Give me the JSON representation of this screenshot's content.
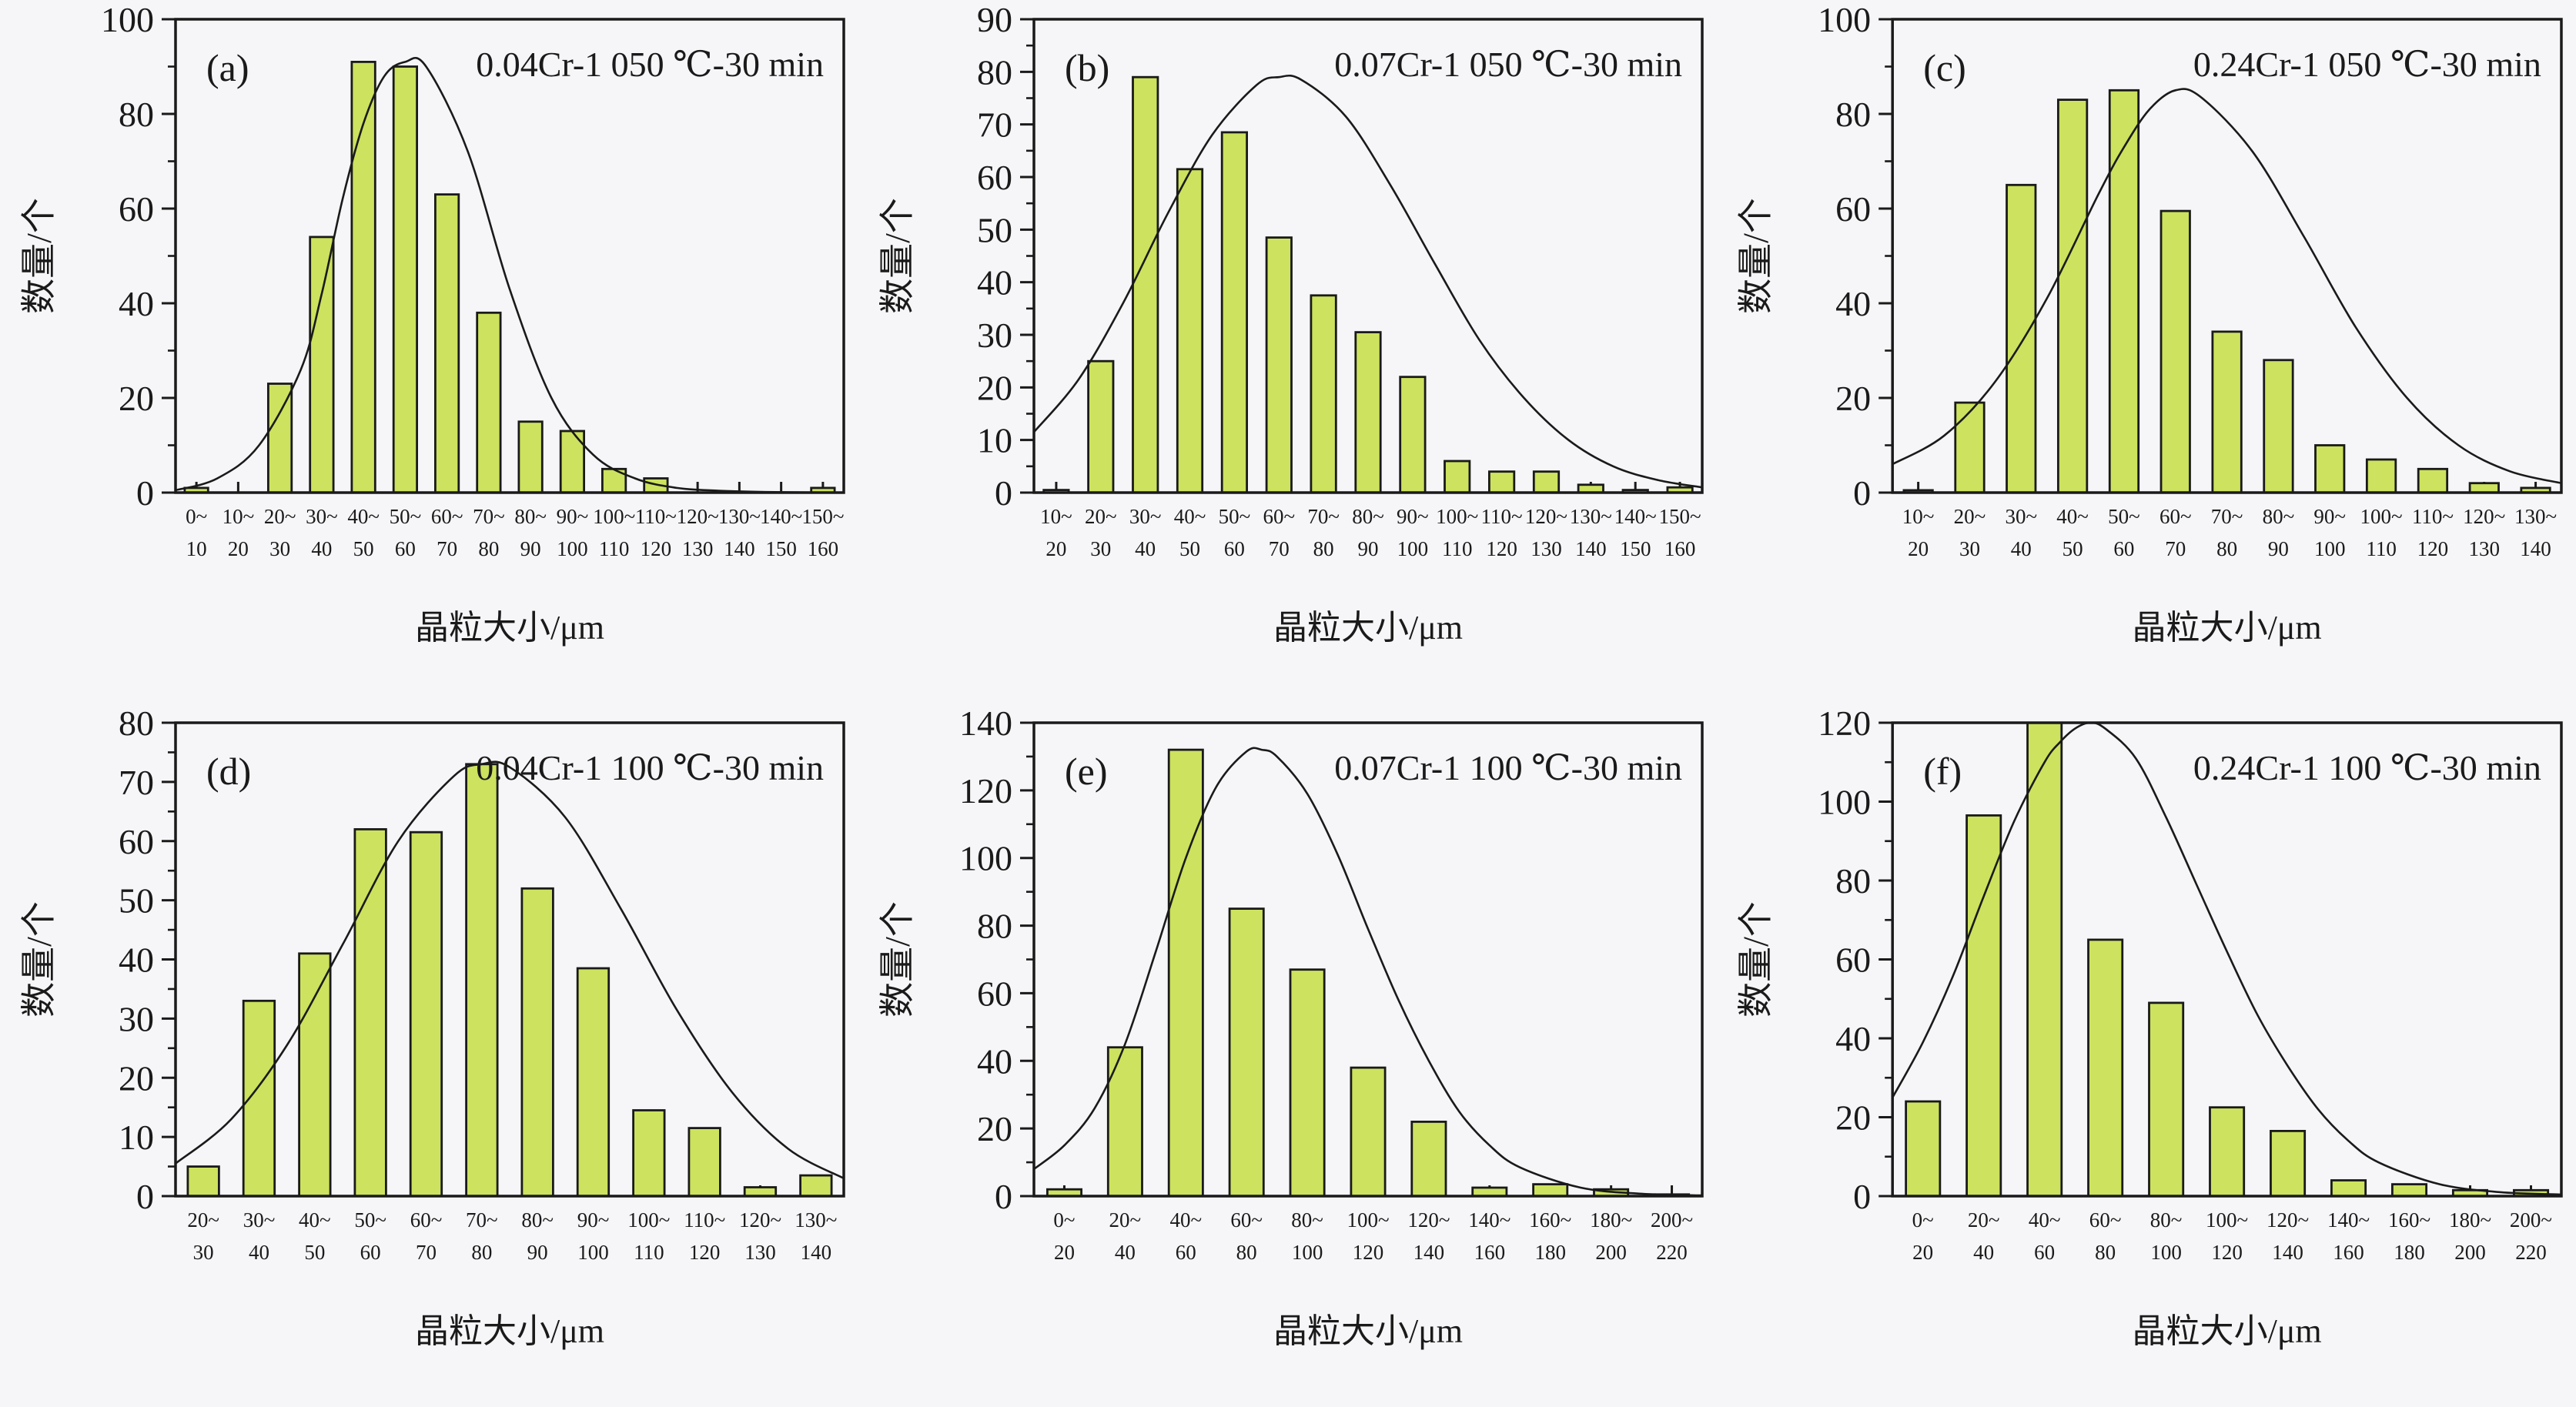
{
  "figure": {
    "xlabel": "晶粒大小/μm",
    "ylabel": "数量/个",
    "colors": {
      "background": "#f6f5f7",
      "bar_fill": "#cde25e",
      "bar_stroke": "#1a1a1a",
      "curve": "#1a1a1a",
      "ink": "#1a1a1a"
    }
  },
  "chart_data": [
    {
      "type": "bar",
      "id": "a",
      "panel_label": "(a)",
      "title": "0.04Cr-1 050 ℃-30 min",
      "xlabel": "晶粒大小/μm",
      "ylabel": "数量/个",
      "categories": [
        "0~10",
        "10~20",
        "20~30",
        "30~40",
        "40~50",
        "50~60",
        "60~70",
        "70~80",
        "80~90",
        "90~100",
        "100~110",
        "110~120",
        "120~130",
        "130~140",
        "140~150",
        "150~160"
      ],
      "values": [
        1,
        0,
        23,
        54,
        91,
        90,
        63,
        38,
        15,
        13,
        5,
        3,
        0,
        0,
        0,
        1
      ],
      "ylim": [
        0,
        100
      ],
      "y_major_step": 20,
      "y_minor_step": 10,
      "x_numeric_range": [
        0,
        160
      ],
      "legend": "none",
      "grid": false,
      "fit_curve": {
        "x": [
          0,
          10,
          20,
          30,
          35,
          40,
          45,
          50,
          55,
          60,
          70,
          80,
          90,
          100,
          110,
          120,
          130,
          145,
          160
        ],
        "y": [
          0.5,
          3,
          10,
          26,
          42,
          62,
          78,
          88,
          91,
          90,
          72,
          43,
          20,
          8,
          3,
          1,
          0.4,
          0.1,
          0
        ]
      }
    },
    {
      "type": "bar",
      "id": "b",
      "panel_label": "(b)",
      "title": "0.07Cr-1 050 ℃-30 min",
      "xlabel": "晶粒大小/μm",
      "ylabel": "数量/个",
      "categories": [
        "10~20",
        "20~30",
        "30~40",
        "40~50",
        "50~60",
        "60~70",
        "70~80",
        "80~90",
        "90~100",
        "100~110",
        "110~120",
        "120~130",
        "130~140",
        "140~150",
        "150~160"
      ],
      "values": [
        0.5,
        25,
        79,
        61.5,
        68.5,
        48.5,
        37.5,
        30.5,
        22,
        6,
        4,
        4,
        1.5,
        0.5,
        1
      ],
      "ylim": [
        0,
        90
      ],
      "y_major_step": 10,
      "y_minor_step": 5,
      "x_numeric_range": [
        10,
        160
      ],
      "legend": "none",
      "grid": false,
      "fit_curve": {
        "x": [
          10,
          20,
          30,
          40,
          50,
          60,
          65,
          70,
          80,
          90,
          100,
          110,
          120,
          130,
          140,
          150,
          160
        ],
        "y": [
          11.5,
          21.5,
          36,
          53,
          68,
          77.5,
          79,
          78.5,
          71.5,
          58.5,
          43.5,
          29,
          18,
          10,
          5,
          2.4,
          1
        ]
      }
    },
    {
      "type": "bar",
      "id": "c",
      "panel_label": "(c)",
      "title": "0.24Cr-1 050 ℃-30 min",
      "xlabel": "晶粒大小/μm",
      "ylabel": "数量/个",
      "categories": [
        "10~20",
        "20~30",
        "30~40",
        "40~50",
        "50~60",
        "60~70",
        "70~80",
        "80~90",
        "90~100",
        "100~110",
        "110~120",
        "120~130",
        "130~140"
      ],
      "values": [
        0.5,
        19,
        65,
        83,
        85,
        59.5,
        34,
        28,
        10,
        7,
        5,
        2,
        1
      ],
      "ylim": [
        0,
        100
      ],
      "y_major_step": 20,
      "y_minor_step": 10,
      "x_numeric_range": [
        10,
        140
      ],
      "legend": "none",
      "grid": false,
      "fit_curve": {
        "x": [
          10,
          20,
          30,
          40,
          50,
          55,
          60,
          65,
          70,
          80,
          90,
          100,
          110,
          120,
          130,
          140
        ],
        "y": [
          6,
          12,
          23.5,
          41,
          63,
          73,
          81,
          85,
          83.5,
          72,
          54,
          35,
          20,
          10,
          4.5,
          2
        ]
      }
    },
    {
      "type": "bar",
      "id": "d",
      "panel_label": "(d)",
      "title": "0.04Cr-1 100 ℃-30 min",
      "xlabel": "晶粒大小/μm",
      "ylabel": "数量/个",
      "categories": [
        "20~30",
        "30~40",
        "40~50",
        "50~60",
        "60~70",
        "70~80",
        "80~90",
        "90~100",
        "100~110",
        "110~120",
        "120~130",
        "130~140"
      ],
      "values": [
        5,
        33,
        41,
        62,
        61.5,
        73,
        52,
        38.5,
        14.5,
        11.5,
        1.5,
        3.5
      ],
      "ylim": [
        0,
        80
      ],
      "y_major_step": 10,
      "y_minor_step": 5,
      "x_numeric_range": [
        20,
        140
      ],
      "legend": "none",
      "grid": false,
      "fit_curve": {
        "x": [
          20,
          30,
          40,
          50,
          60,
          70,
          75,
          80,
          90,
          100,
          110,
          120,
          130,
          140
        ],
        "y": [
          5.5,
          13,
          25.5,
          42.5,
          60,
          71,
          73,
          72.5,
          64,
          48.5,
          31.5,
          17.5,
          8,
          3
        ]
      }
    },
    {
      "type": "bar",
      "id": "e",
      "panel_label": "(e)",
      "title": "0.07Cr-1 100 ℃-30 min",
      "xlabel": "晶粒大小/μm",
      "ylabel": "数量/个",
      "categories": [
        "0~20",
        "20~40",
        "40~60",
        "60~80",
        "80~100",
        "100~120",
        "120~140",
        "140~160",
        "160~180",
        "180~200",
        "200~220"
      ],
      "values": [
        2,
        44,
        132,
        85,
        67,
        38,
        22,
        2.5,
        3.5,
        2,
        0.5
      ],
      "ylim": [
        0,
        140
      ],
      "y_major_step": 20,
      "y_minor_step": 10,
      "x_numeric_range": [
        0,
        220
      ],
      "legend": "none",
      "grid": false,
      "fit_curve": {
        "x": [
          0,
          10,
          20,
          30,
          40,
          50,
          60,
          70,
          75,
          80,
          90,
          100,
          110,
          120,
          130,
          140,
          150,
          160,
          180,
          200,
          220
        ],
        "y": [
          8,
          15,
          26,
          45,
          72,
          100,
          121,
          131.5,
          132,
          130,
          119,
          101,
          79,
          58,
          40,
          25,
          15,
          8.5,
          2.5,
          0.7,
          0.2
        ]
      }
    },
    {
      "type": "bar",
      "id": "f",
      "panel_label": "(f)",
      "title": "0.24Cr-1 100 ℃-30 min",
      "xlabel": "晶粒大小/μm",
      "ylabel": "数量/个",
      "categories": [
        "0~20",
        "20~40",
        "40~60",
        "60~80",
        "80~100",
        "100~120",
        "120~140",
        "140~160",
        "160~180",
        "180~200",
        "200~220"
      ],
      "values": [
        24,
        96.5,
        120,
        65,
        49,
        22.5,
        16.5,
        4,
        3,
        1.5,
        1.5
      ],
      "ylim": [
        0,
        120
      ],
      "y_major_step": 20,
      "y_minor_step": 10,
      "x_numeric_range": [
        0,
        220
      ],
      "legend": "none",
      "grid": false,
      "fit_curve": {
        "x": [
          0,
          10,
          20,
          30,
          40,
          50,
          55,
          60,
          65,
          70,
          80,
          90,
          100,
          110,
          120,
          130,
          140,
          150,
          160,
          180,
          200,
          220
        ],
        "y": [
          25,
          39,
          56,
          76,
          95,
          110,
          115,
          118.5,
          120,
          118.5,
          111,
          96,
          79,
          62,
          46,
          33,
          22,
          14,
          8.5,
          3,
          1,
          0.4
        ]
      }
    }
  ]
}
